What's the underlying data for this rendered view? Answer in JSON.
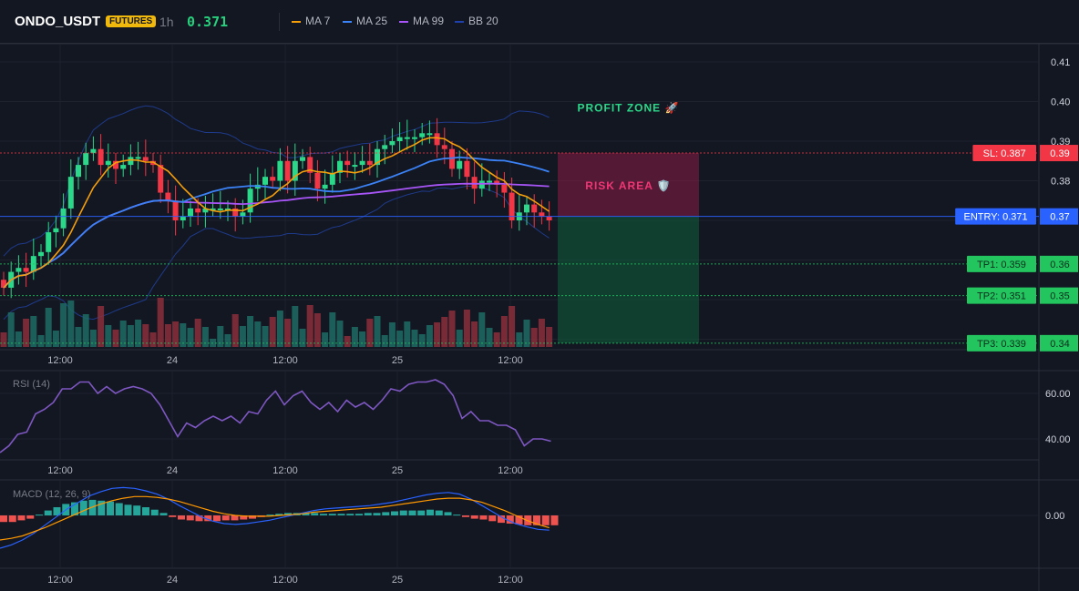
{
  "header": {
    "symbol": "ONDO_USDT",
    "badge": "FUTURES",
    "interval": "1h",
    "last_price": "0.371",
    "indicators": [
      {
        "label": "MA 7",
        "color": "#f59e0b"
      },
      {
        "label": "MA 25",
        "color": "#3b82f6"
      },
      {
        "label": "MA 99",
        "color": "#a855f7"
      },
      {
        "label": "BB 20",
        "color": "#1e40af"
      }
    ]
  },
  "colors": {
    "up": "#26a69a",
    "up_bright": "#2bd88a",
    "down": "#ef5350",
    "down_bright": "#f23645",
    "sl": "#f23645",
    "entry": "#2962ff",
    "tp": "#22c55e",
    "rsi": "#7e57c2",
    "macd": "#2962ff",
    "signal": "#ff9800"
  },
  "chart_data": [
    {
      "type": "candlestick",
      "title": "ONDO_USDT 1h",
      "x_ticks": [
        "12:00",
        "24",
        "12:00",
        "25",
        "12:00"
      ],
      "y_ticks": [
        0.34,
        0.35,
        0.36,
        0.37,
        0.38,
        0.39,
        0.4,
        0.41
      ],
      "ylim": [
        0.338,
        0.413
      ],
      "candles_close": [
        0.353,
        0.357,
        0.358,
        0.357,
        0.361,
        0.362,
        0.367,
        0.368,
        0.373,
        0.381,
        0.384,
        0.387,
        0.388,
        0.384,
        0.385,
        0.383,
        0.384,
        0.386,
        0.386,
        0.385,
        0.384,
        0.377,
        0.375,
        0.37,
        0.371,
        0.373,
        0.372,
        0.373,
        0.373,
        0.373,
        0.373,
        0.371,
        0.372,
        0.378,
        0.379,
        0.381,
        0.38,
        0.385,
        0.38,
        0.385,
        0.386,
        0.382,
        0.378,
        0.379,
        0.382,
        0.385,
        0.384,
        0.384,
        0.385,
        0.384,
        0.388,
        0.389,
        0.39,
        0.391,
        0.391,
        0.391,
        0.392,
        0.392,
        0.389,
        0.388,
        0.383,
        0.385,
        0.381,
        0.378,
        0.38,
        0.38,
        0.379,
        0.377,
        0.37,
        0.372,
        0.374,
        0.372,
        0.371,
        0.37
      ],
      "volume_by_candle": "shown",
      "levels": [
        {
          "label": "SL: 0.387",
          "axis": "0.39",
          "value": 0.387
        },
        {
          "label": "ENTRY: 0.371",
          "axis": "0.37",
          "value": 0.371
        },
        {
          "label": "TP1: 0.359",
          "axis": "0.36",
          "value": 0.359
        },
        {
          "label": "TP2: 0.351",
          "axis": "0.35",
          "value": 0.351
        },
        {
          "label": "TP3: 0.339",
          "axis": "0.34",
          "value": 0.339
        }
      ],
      "zones": [
        {
          "label": "RISK AREA 🛡️",
          "from": 0.371,
          "to": 0.387
        },
        {
          "label": "PROFIT ZONE 🚀",
          "from": 0.339,
          "to": 0.371
        }
      ]
    },
    {
      "type": "line",
      "title": "RSI (14)",
      "x_ticks": [
        "12:00",
        "24",
        "12:00",
        "25",
        "12:00"
      ],
      "y_ticks": [
        40.0,
        60.0
      ],
      "ylim": [
        31,
        67
      ],
      "values": [
        34,
        37,
        42,
        43,
        51,
        53,
        56,
        62,
        62,
        65,
        65,
        60,
        63,
        60,
        62,
        63,
        62,
        60,
        55,
        48,
        41,
        47,
        45,
        48,
        50,
        48,
        50,
        47,
        52,
        51,
        57,
        61,
        55,
        59,
        61,
        56,
        53,
        56,
        52,
        57,
        54,
        56,
        53,
        57,
        62,
        61,
        64,
        65,
        65,
        66,
        64,
        59,
        49,
        52,
        48,
        48,
        46,
        46,
        44,
        37,
        40,
        40,
        39
      ]
    },
    {
      "type": "bar",
      "title": "MACD (12, 26, 9)",
      "x_ticks": [
        "12:00",
        "24",
        "12:00",
        "25",
        "12:00"
      ],
      "y_ticks": [
        0.0
      ],
      "histogram": [
        -0.8,
        -0.8,
        -0.6,
        -0.4,
        0.1,
        0.6,
        1.0,
        1.4,
        1.6,
        1.8,
        1.9,
        1.8,
        1.7,
        1.5,
        1.3,
        1.2,
        1.0,
        0.7,
        0.3,
        -0.2,
        -0.5,
        -0.6,
        -0.7,
        -0.7,
        -0.7,
        -0.6,
        -0.6,
        -0.5,
        -0.4,
        -0.2,
        0.1,
        0.2,
        0.3,
        0.3,
        0.3,
        0.3,
        0.2,
        0.2,
        0.2,
        0.2,
        0.2,
        0.3,
        0.3,
        0.4,
        0.5,
        0.6,
        0.6,
        0.6,
        0.7,
        0.6,
        0.4,
        0.1,
        -0.2,
        -0.4,
        -0.5,
        -0.7,
        -0.9,
        -1.0,
        -1.1,
        -1.2,
        -1.2,
        -1.2,
        -1.2
      ],
      "macd": [
        -4.0,
        -3.6,
        -3.0,
        -2.2,
        -1.2,
        -0.2,
        0.8,
        1.6,
        2.4,
        2.9,
        3.3,
        3.4,
        3.3,
        3.0,
        2.6,
        2.0,
        1.2,
        0.5,
        -0.2,
        -0.7,
        -1.0,
        -1.1,
        -1.0,
        -0.8,
        -0.6,
        -0.3,
        0.0,
        0.3,
        0.6,
        0.8,
        0.9,
        1.0,
        1.1,
        1.2,
        1.4,
        1.6,
        1.9,
        2.2,
        2.5,
        2.7,
        2.8,
        2.6,
        2.0,
        1.2,
        0.4,
        -0.4,
        -1.0,
        -1.4,
        -1.7,
        -1.8
      ],
      "signal": [
        -3.0,
        -2.8,
        -2.5,
        -2.0,
        -1.5,
        -0.9,
        -0.3,
        0.3,
        0.9,
        1.4,
        1.8,
        2.1,
        2.3,
        2.3,
        2.2,
        2.0,
        1.7,
        1.3,
        0.9,
        0.5,
        0.2,
        0.0,
        -0.1,
        -0.1,
        -0.1,
        0.0,
        0.1,
        0.2,
        0.4,
        0.5,
        0.6,
        0.7,
        0.8,
        0.9,
        1.0,
        1.2,
        1.4,
        1.6,
        1.8,
        2.0,
        2.1,
        2.1,
        1.9,
        1.6,
        1.1,
        0.6,
        0.0,
        -0.6,
        -1.1,
        -1.5
      ]
    }
  ]
}
